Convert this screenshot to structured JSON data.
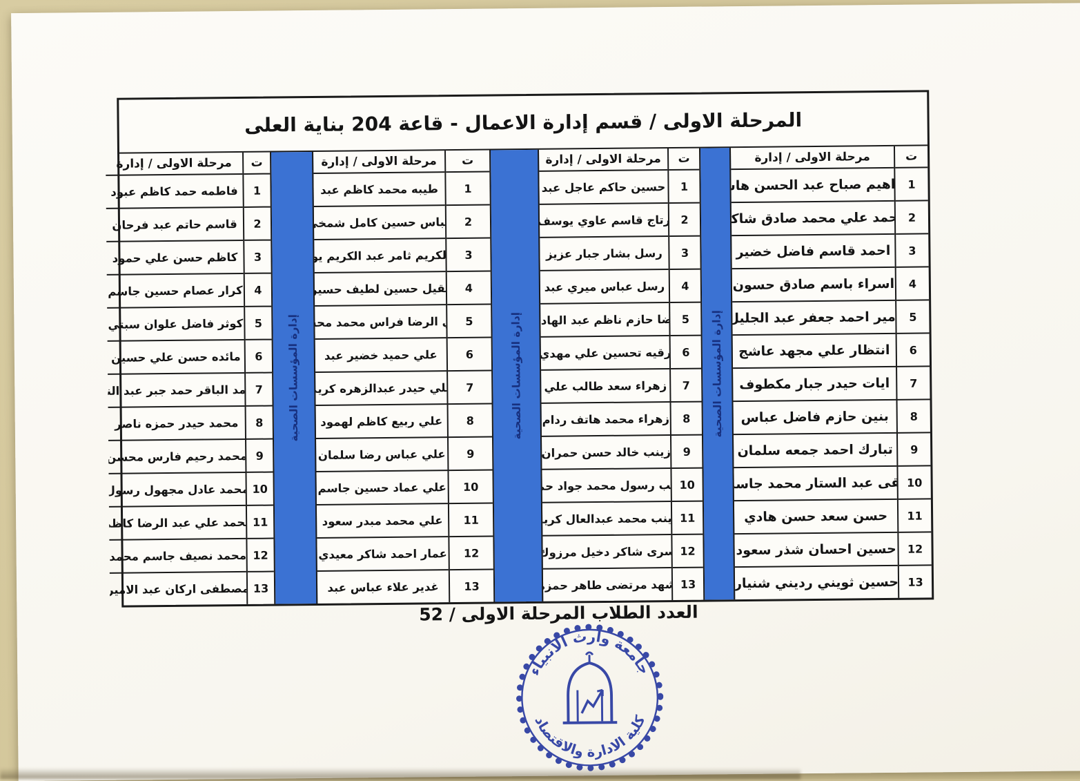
{
  "document": {
    "title": "المرحلة الاولى / قسم إدارة الاعمال - قاعة 204 بناية العلى",
    "header": {
      "index_label": "ت",
      "name_label": "مرحلة الاولى / إدارة"
    },
    "divider_label": "إدارة المؤسسات الصحية",
    "groups": [
      {
        "names": [
          "ابراهيم صباح عبد الحسن هاشم",
          "احمد علي محمد صادق شاكر",
          "احمد قاسم فاضل خضير",
          "اسراء باسم صادق حسون",
          "امير احمد جعفر عبد الجليل",
          "انتظار علي مجهد عاشج",
          "ايات حيدر جبار مكطوف",
          "بنين حازم فاضل عباس",
          "تبارك احمد جمعه سلمان",
          "تقى عبد الستار محمد جاسم",
          "حسن سعد حسن هادي",
          "حسين احسان شذر سعود",
          "حسين ثويني رديني شنيار"
        ]
      },
      {
        "names": [
          "حسين حاكم عاجل عبد",
          "رتاج قاسم عاوي يوسف",
          "رسل بشار جبار عزيز",
          "رسل عباس ميري عبد",
          "رضا حازم ناظم عبد الهادي",
          "رقيه تحسين علي مهدي",
          "زهراء سعد طالب علي",
          "زهراء محمد هاتف ردام",
          "زينب خالد حسن حمران",
          "زينب رسول محمد جواد حميد",
          "زينب محمد عبدالعال كريم",
          "سرى شاكر دخيل مرزوك",
          "شهد مرتضى طاهر حمزه"
        ]
      },
      {
        "names": [
          "طيبه محمد كاظم عبد",
          "عباس حسين كامل شمخي",
          "عبد الكريم ثامر عبد الكريم يوسف",
          "عقيل حسين لطيف حسين",
          "علي الرضا فراس محمد محسن",
          "علي حميد خضير عبد",
          "علي حيدر عبدالزهره كريم",
          "علي ربيع كاظم لهمود",
          "علي عباس رضا سلمان",
          "علي عماد حسين جاسم",
          "علي محمد مبدر سعود",
          "عمار احمد شاكر معيدي",
          "غدير علاء عباس عبد"
        ]
      },
      {
        "names": [
          "فاطمه حمد كاظم عبود",
          "قاسم حاتم عبد فرحان",
          "كاظم حسن علي حمود",
          "كرار عصام حسين جاسم",
          "كوثر فاضل علوان سبتي",
          "مائده حسن علي حسين",
          "محمد الباقر حمد جبر عبد النبي",
          "محمد حيدر حمزه ناصر",
          "محمد رحيم فارس محسن",
          "محمد عادل مجهول رسول",
          "محمد علي عبد الرضا كاظم",
          "محمد نصيف جاسم محمد",
          "مصطفى اركان عبد الامير"
        ]
      }
    ],
    "footer": {
      "total_line": "العدد الطلاب المرحلة الاولى / 52"
    },
    "stamp": {
      "top_text": "جامعة وارث الأنبياء",
      "bottom_text": "كلية الادارة والاقتصاد"
    },
    "colors": {
      "bar_blue": "#3b72d3",
      "bar_text_blue": "#17307f",
      "stamp_blue": "#2e3fa3",
      "paper": "#fbfaf6",
      "background": "#d3c69a"
    }
  }
}
